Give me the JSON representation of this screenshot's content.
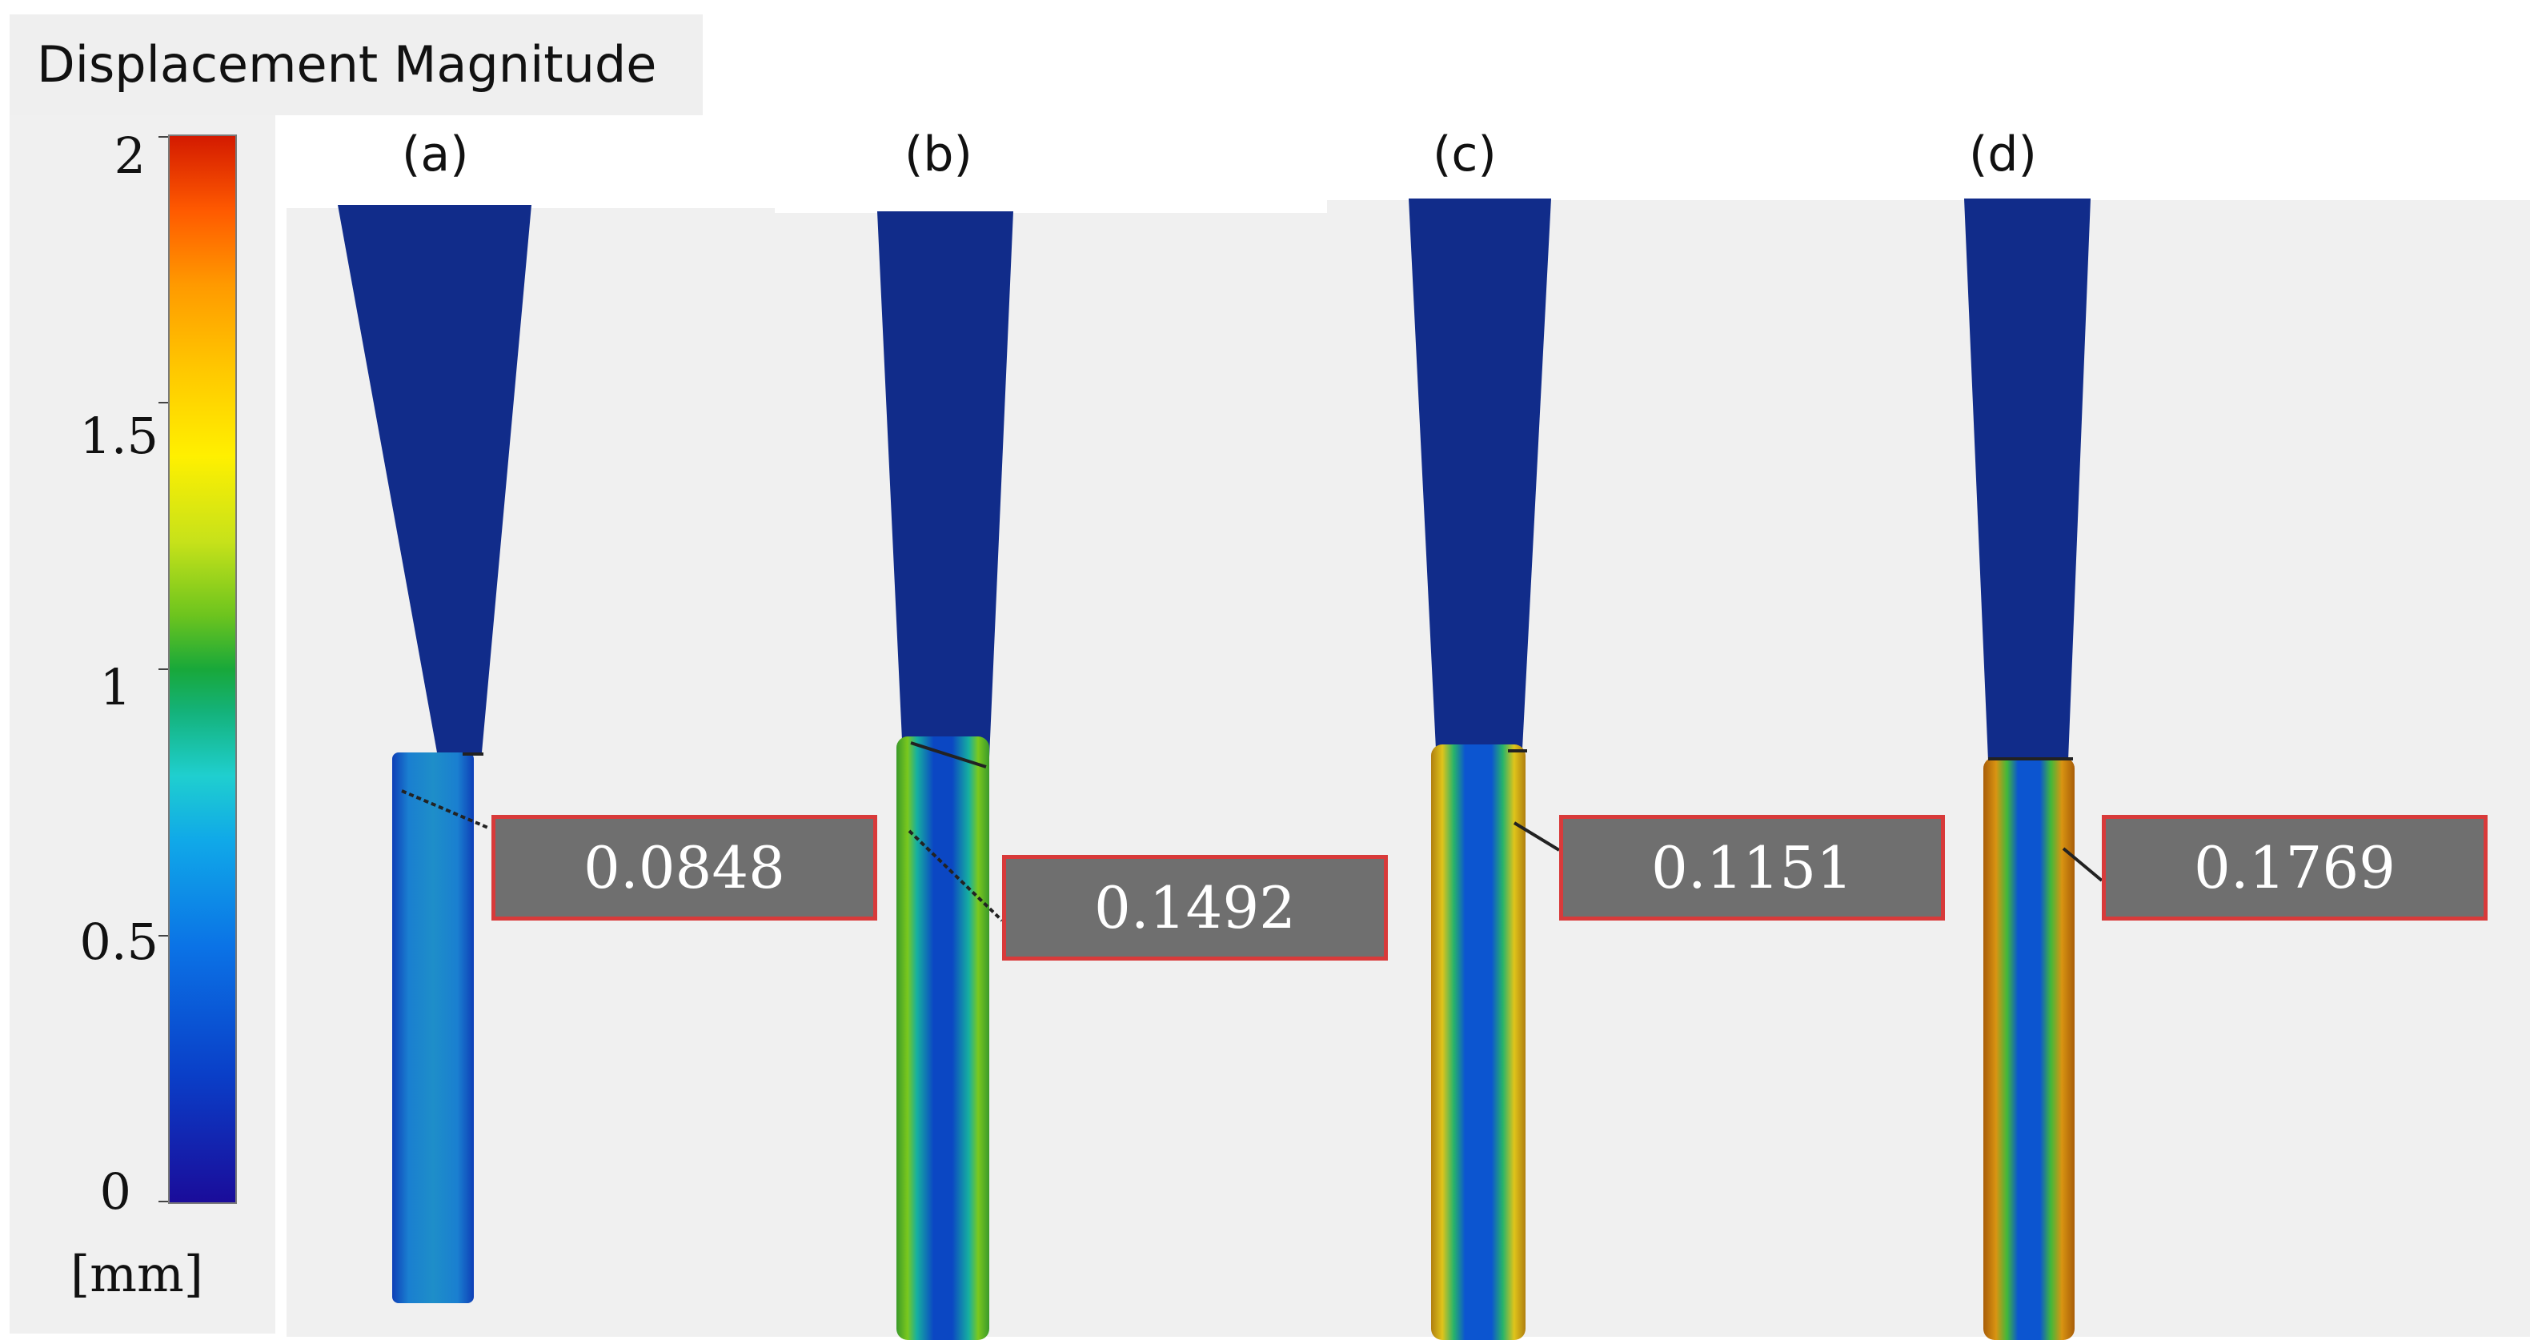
{
  "legend": {
    "title": "Displacement Magnitude",
    "unit": "[mm]",
    "ticks": [
      "2",
      "1.5",
      "1",
      "0.5",
      "0"
    ],
    "range": [
      0,
      2
    ]
  },
  "panels": [
    {
      "label": "(a)",
      "value": "0.0848"
    },
    {
      "label": "(b)",
      "value": "0.1492"
    },
    {
      "label": "(c)",
      "value": "0.1151"
    },
    {
      "label": "(d)",
      "value": "0.1769"
    }
  ],
  "colors": {
    "low": "#1a0c9a",
    "high": "#d31a00",
    "background": "#f0f0f0",
    "callout_fill": "#6f6f6f",
    "callout_border": "#d83a3a"
  }
}
